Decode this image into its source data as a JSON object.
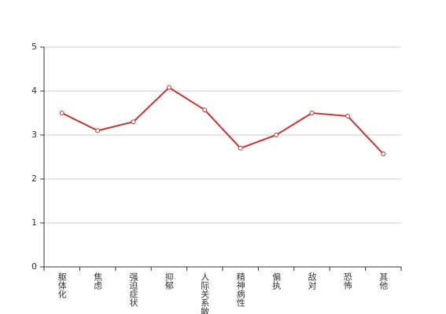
{
  "chart_data": {
    "type": "line",
    "categories": [
      "躯体化",
      "焦虑",
      "强迫症状",
      "抑郁",
      "人际关系敏感",
      "精神病性",
      "偏执",
      "敌对",
      "恐怖",
      "其他"
    ],
    "series": [
      {
        "color": "#c23531",
        "values": [
          3.5,
          3.1,
          3.3,
          4.08,
          3.57,
          2.7,
          3.0,
          3.5,
          3.43,
          2.57
        ]
      }
    ],
    "ylim": [
      0,
      5
    ],
    "yticks": [
      0,
      1,
      2,
      3,
      4,
      5
    ],
    "grid": true
  }
}
